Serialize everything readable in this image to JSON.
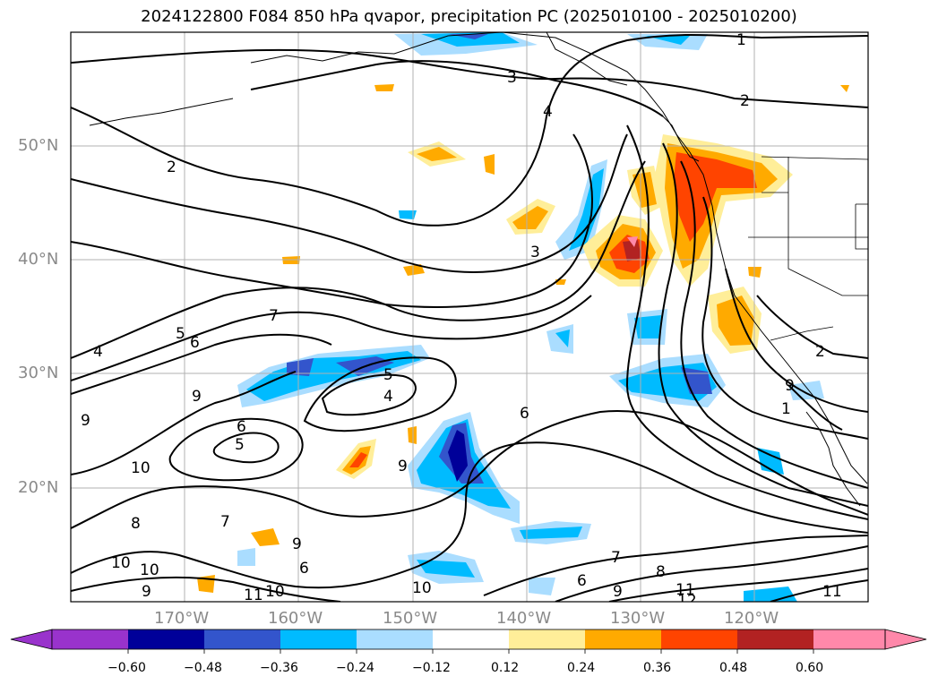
{
  "title": "2024122800 F084 850 hPa qvapor, precipitation PC (2025010100 - 2025010200)",
  "lat_labels": [
    "50°N",
    "40°N",
    "30°N",
    "20°N"
  ],
  "lon_labels": [
    "170°W",
    "160°W",
    "150°W",
    "140°W",
    "130°W",
    "120°W"
  ],
  "contour_labels": [
    "1",
    "2",
    "3",
    "3",
    "2",
    "4",
    "5",
    "6",
    "7",
    "9",
    "6",
    "5",
    "4",
    "5",
    "6",
    "9",
    "10",
    "8",
    "7",
    "9",
    "6",
    "10",
    "10",
    "9",
    "11",
    "10",
    "9",
    "6",
    "7",
    "8",
    "9",
    "10",
    "11",
    "12",
    "11",
    "1",
    "2",
    "4",
    "9"
  ],
  "colorbar": {
    "tick_labels": [
      "−0.60",
      "−0.48",
      "−0.36",
      "−0.24",
      "−0.12",
      "0.12",
      "0.24",
      "0.36",
      "0.48",
      "0.60"
    ],
    "colors": [
      "#9933cc",
      "#000099",
      "#3355cc",
      "#00bbff",
      "#aaddff",
      "#ffffff",
      "#ffee99",
      "#ffaa00",
      "#ff4400",
      "#b22222",
      "#ff88aa"
    ]
  }
}
